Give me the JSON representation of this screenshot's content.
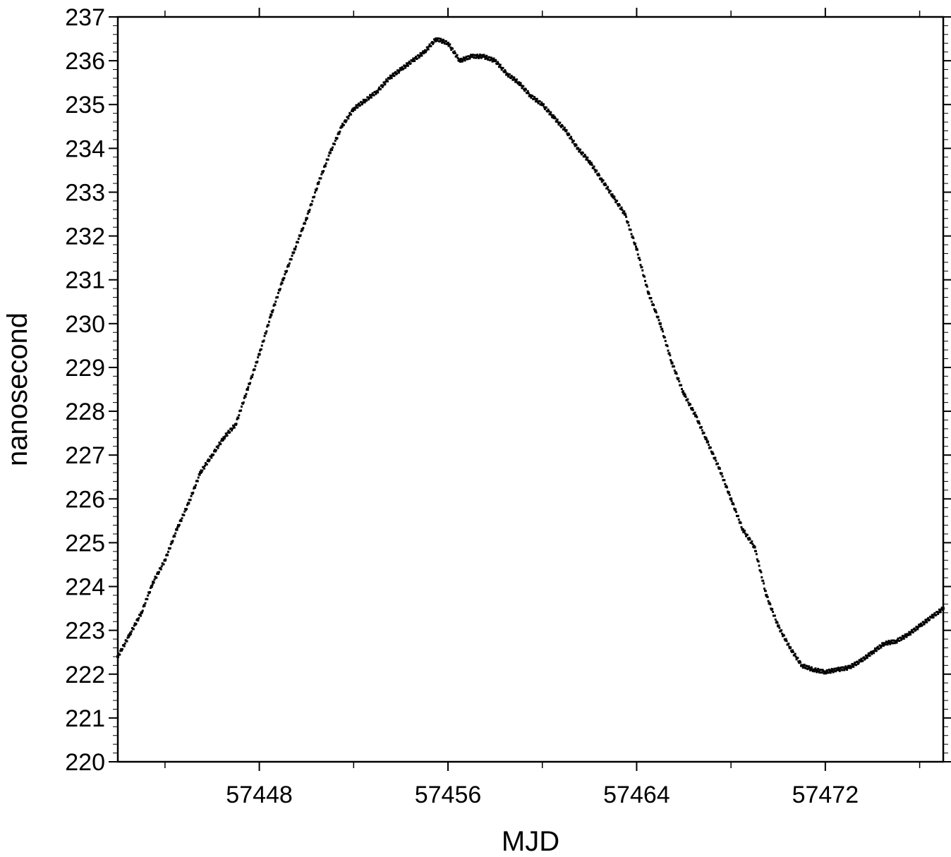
{
  "chart_data": {
    "type": "scatter",
    "title": "",
    "xlabel": "MJD",
    "ylabel": "nanosecond",
    "xlim": [
      57442.0,
      57477.0
    ],
    "ylim": [
      220,
      237
    ],
    "x_ticks": [
      57448,
      57456,
      57464,
      57472
    ],
    "x_tick_labels": [
      "57448",
      "57456",
      "57464",
      "57472"
    ],
    "y_ticks": [
      220,
      221,
      222,
      223,
      224,
      225,
      226,
      227,
      228,
      229,
      230,
      231,
      232,
      233,
      234,
      235,
      236,
      237
    ],
    "y_tick_labels": [
      "220",
      "221",
      "222",
      "223",
      "224",
      "225",
      "226",
      "227",
      "228",
      "229",
      "230",
      "231",
      "232",
      "233",
      "234",
      "235",
      "236",
      "237"
    ],
    "grid": false,
    "marker_color": "#000000",
    "series": [
      {
        "x": [
          57442.0,
          57442.5,
          57443.0,
          57443.5,
          57444.0,
          57444.5,
          57445.0,
          57445.5,
          57446.0,
          57446.5,
          57447.0,
          57447.5,
          57448.0,
          57448.5,
          57449.0,
          57449.5,
          57450.0,
          57450.5,
          57451.0,
          57451.5,
          57452.0,
          57452.5,
          57453.0,
          57453.5,
          57454.0,
          57454.5,
          57455.0,
          57455.5,
          57456.0,
          57456.5,
          57457.0,
          57457.5,
          57458.0,
          57458.5,
          57459.0,
          57459.5,
          57460.0,
          57460.5,
          57461.0,
          57461.5,
          57462.0,
          57462.5,
          57463.0,
          57463.5,
          57464.0,
          57464.5,
          57465.0,
          57465.5,
          57466.0,
          57466.5,
          57467.0,
          57467.5,
          57468.0,
          57468.5,
          57469.0,
          57469.5,
          57470.0,
          57470.5,
          57471.0,
          57471.5,
          57472.0,
          57472.5,
          57473.0,
          57473.5,
          57474.0,
          57474.5,
          57475.0,
          57475.5,
          57476.0,
          57476.5,
          57477.0
        ],
        "y": [
          222.4,
          222.9,
          223.4,
          224.1,
          224.6,
          225.3,
          225.9,
          226.6,
          227.0,
          227.4,
          227.7,
          228.5,
          229.3,
          230.2,
          231.0,
          231.7,
          232.4,
          233.2,
          233.9,
          234.5,
          234.9,
          235.1,
          235.3,
          235.6,
          235.8,
          236.0,
          236.2,
          236.5,
          236.4,
          236.0,
          236.1,
          236.1,
          236.0,
          235.7,
          235.5,
          235.2,
          235.0,
          234.7,
          234.4,
          234.0,
          233.7,
          233.3,
          232.9,
          232.5,
          231.7,
          230.7,
          230.0,
          229.1,
          228.4,
          227.9,
          227.3,
          226.7,
          226.0,
          225.3,
          224.9,
          223.8,
          223.1,
          222.6,
          222.2,
          222.1,
          222.05,
          222.1,
          222.15,
          222.3,
          222.5,
          222.7,
          222.75,
          222.9,
          223.1,
          223.3,
          223.5
        ]
      }
    ]
  }
}
